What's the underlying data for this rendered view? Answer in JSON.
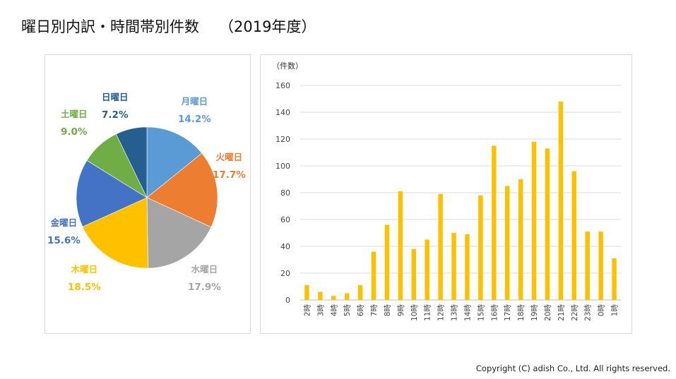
{
  "header": {
    "title": "曜日別内訳・時間帯別件数",
    "year": "（2019年度）"
  },
  "footer": {
    "copyright": "Copyright (C) adish Co., Ltd. All rights reserved."
  },
  "colors": {
    "mon": "#5B9BD5",
    "tue": "#ED7D31",
    "wed": "#A5A5A5",
    "thu": "#FFC000",
    "fri": "#4472C4",
    "sat": "#70AD47",
    "sun": "#255E91",
    "bar": "#FFC000"
  },
  "chart_data": [
    {
      "type": "pie",
      "start": "12 o'clock, clockwise",
      "slices": [
        {
          "label": "月曜日",
          "pct": "14.2%",
          "value": 14.2,
          "color": "#5B9BD5"
        },
        {
          "label": "火曜日",
          "pct": "17.7%",
          "value": 17.7,
          "color": "#ED7D31"
        },
        {
          "label": "水曜日",
          "pct": "17.9%",
          "value": 17.9,
          "color": "#A5A5A5"
        },
        {
          "label": "木曜日",
          "pct": "18.5%",
          "value": 18.5,
          "color": "#FFC000"
        },
        {
          "label": "金曜日",
          "pct": "15.6%",
          "value": 15.6,
          "color": "#4472C4"
        },
        {
          "label": "土曜日",
          "pct": "9.0%",
          "value": 9.0,
          "color": "#70AD47"
        },
        {
          "label": "日曜日",
          "pct": "7.2%",
          "value": 7.2,
          "color": "#255E91"
        }
      ]
    },
    {
      "type": "bar",
      "ylabel": "（件数）",
      "ylim": [
        0,
        160
      ],
      "yticks": [
        0,
        20,
        40,
        60,
        80,
        100,
        120,
        140,
        160
      ],
      "grid": true,
      "categories": [
        "2時",
        "3時",
        "4時",
        "5時",
        "6時",
        "7時",
        "8時",
        "9時",
        "10時",
        "11時",
        "12時",
        "13時",
        "14時",
        "15時",
        "16時",
        "17時",
        "18時",
        "19時",
        "20時",
        "21時",
        "22時",
        "23時",
        "0時",
        "1時"
      ],
      "values": [
        11,
        6,
        3,
        5,
        11,
        36,
        56,
        81,
        38,
        45,
        79,
        50,
        49,
        78,
        115,
        85,
        90,
        118,
        113,
        148,
        96,
        51,
        51,
        31
      ]
    }
  ]
}
